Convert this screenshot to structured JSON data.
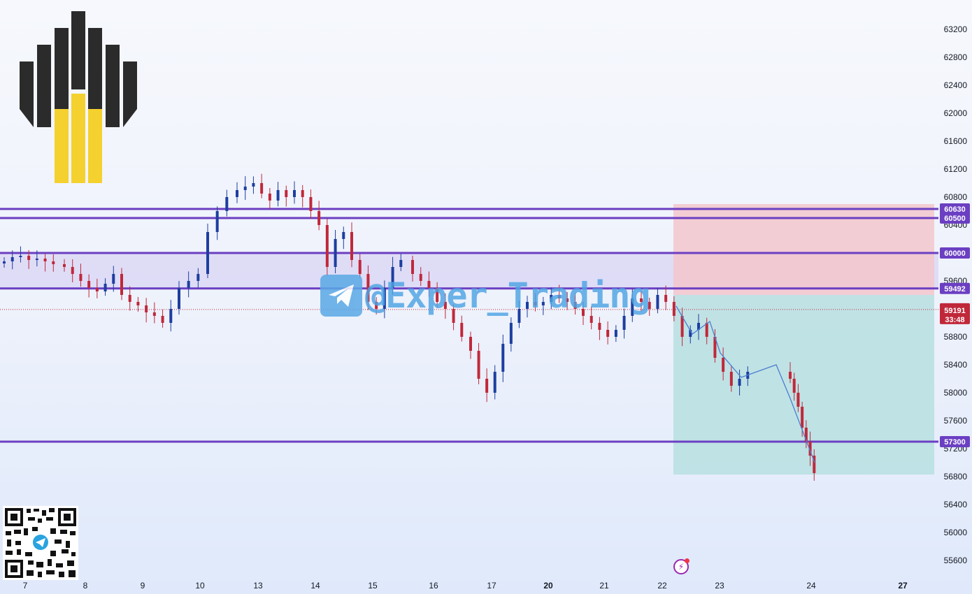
{
  "chart_data": {
    "type": "candlestick",
    "title": "",
    "xlabel": "",
    "ylabel": "",
    "ylim": [
      55400,
      63400
    ],
    "y_ticks": [
      63200,
      62800,
      62400,
      62000,
      61600,
      61200,
      60800,
      60400,
      59600,
      58800,
      58400,
      58000,
      57600,
      57200,
      56800,
      56400,
      56000,
      55600
    ],
    "x_ticks": [
      "7",
      "8",
      "9",
      "10",
      "13",
      "14",
      "15",
      "16",
      "17",
      "20",
      "21",
      "22",
      "23",
      "24",
      "27"
    ],
    "grid": false,
    "levels": [
      {
        "label": "60630",
        "value": 60630
      },
      {
        "label": "60500",
        "value": 60500
      },
      {
        "label": "60000",
        "value": 60000
      },
      {
        "label": "59492",
        "value": 59492
      },
      {
        "label": "57300",
        "value": 57300
      }
    ],
    "current_price": {
      "label": "59191",
      "countdown": "33:48",
      "value": 59191
    },
    "range_band": {
      "from": 59492,
      "to": 60000
    },
    "position": {
      "type": "short",
      "entry": 59400,
      "stop": 60700,
      "target": 56830,
      "start_day": "22",
      "end_day": "27"
    },
    "candle_closes": [
      {
        "day": "7",
        "closes": [
          59880,
          59940,
          59960,
          59900,
          59920,
          59880,
          59840
        ]
      },
      {
        "day": "8",
        "closes": [
          59800,
          59700,
          59600,
          59500,
          59450,
          59560,
          59700
        ]
      },
      {
        "day": "9",
        "closes": [
          59400,
          59300,
          59250,
          59150,
          59100,
          59000,
          59200
        ]
      },
      {
        "day": "10",
        "closes": [
          59500,
          59600,
          59700,
          60300,
          60600,
          60800
        ]
      },
      {
        "day": "13",
        "closes": [
          60900,
          60950,
          61000,
          60850,
          60750,
          60900,
          60800
        ]
      },
      {
        "day": "14",
        "closes": [
          60900,
          60800,
          60600,
          60400,
          59800,
          60200,
          60300
        ]
      },
      {
        "day": "15",
        "closes": [
          59900,
          59700,
          59300,
          59200,
          59500,
          59800,
          59900
        ]
      },
      {
        "day": "16",
        "closes": [
          59700,
          59600,
          59500,
          59300,
          59200,
          59000,
          58800
        ]
      },
      {
        "day": "17",
        "closes": [
          58600,
          58200,
          58000,
          58300,
          58700,
          59000,
          59200
        ]
      },
      {
        "day": "20",
        "closes": [
          59300,
          59250,
          59300,
          59400,
          59350,
          59300,
          59200
        ]
      },
      {
        "day": "21",
        "closes": [
          59100,
          59000,
          58900,
          58800,
          58900,
          59100,
          59350
        ]
      },
      {
        "day": "22",
        "closes": [
          59300,
          59200,
          59400,
          59300,
          59100,
          58800,
          58900
        ]
      },
      {
        "day": "23",
        "closes": [
          59000,
          58800,
          58500,
          58300,
          58100,
          58200,
          58300
        ]
      },
      {
        "day": "24",
        "closes": [
          58200,
          58000,
          57800,
          57500,
          57300,
          57100,
          56850
        ]
      }
    ]
  },
  "watermark": {
    "handle": "@Exper_Trading",
    "icon": "telegram-icon"
  },
  "brand": {
    "logo_icon": "oil-company-logo",
    "qr_icon": "telegram-qr-code",
    "alert_icon": "lightning-icon"
  },
  "colors": {
    "bull": "#1d3ea0",
    "bear": "#c0283a",
    "level": "#6b3fc2",
    "stop_zone": "#f3c5cc",
    "target_zone": "#b7dfe0",
    "price_tag": "#c0283a"
  }
}
